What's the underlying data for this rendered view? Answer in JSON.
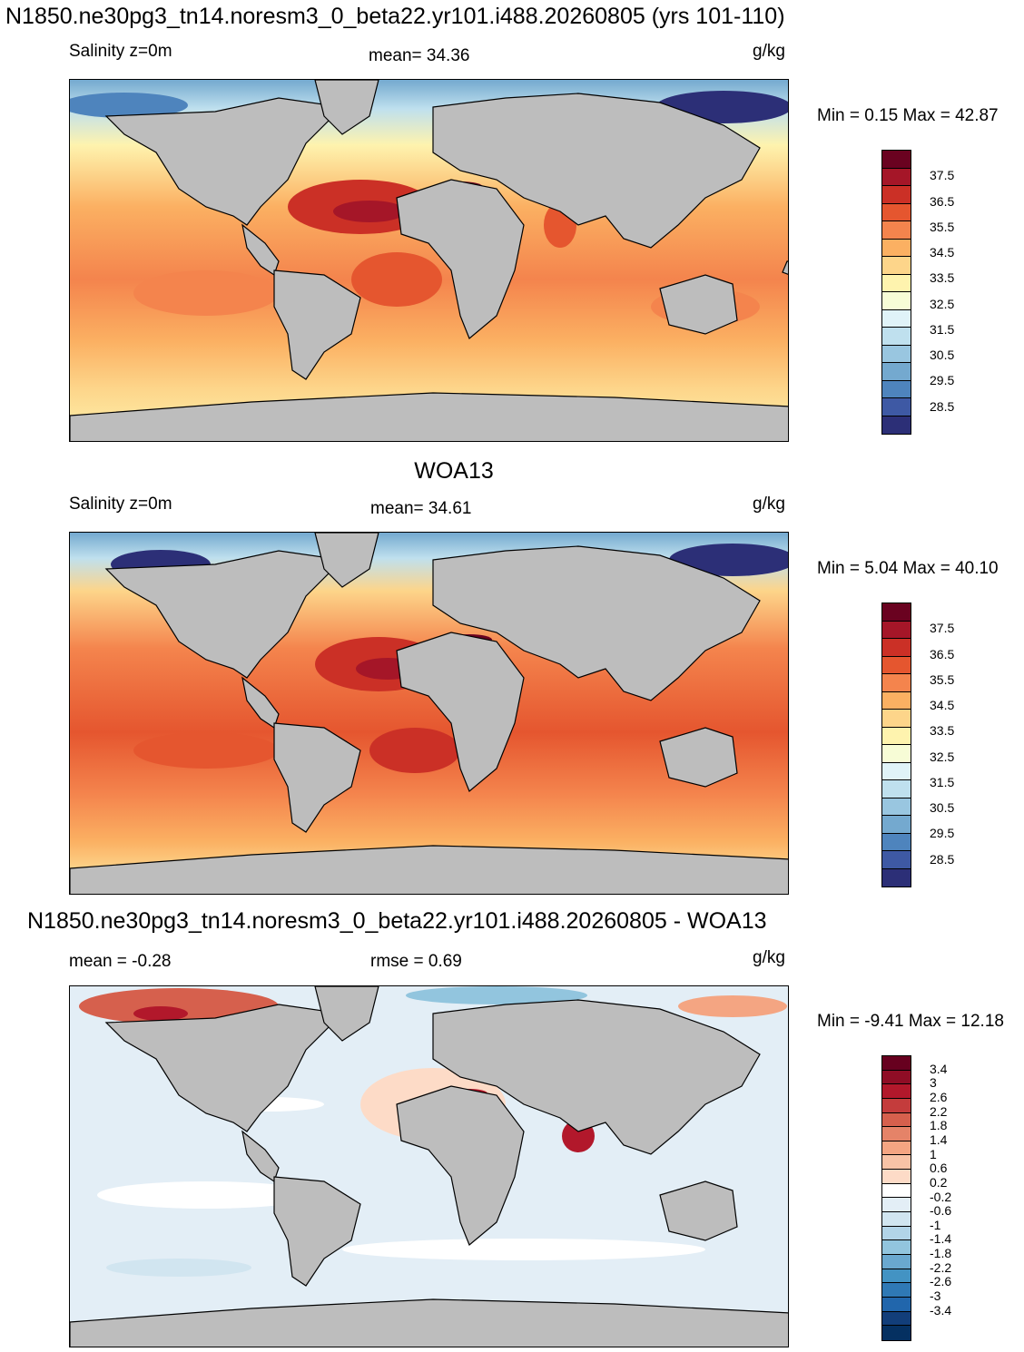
{
  "titles": {
    "model": "N1850.ne30pg3_tn14.noresm3_0_beta22.yr101.i488.20260805 (yrs 101-110)",
    "obs": "WOA13",
    "diff": "N1850.ne30pg3_tn14.noresm3_0_beta22.yr101.i488.20260805 - WOA13"
  },
  "panels": [
    {
      "left_label": "Salinity z=0m",
      "center_label": "mean=  34.36",
      "units": "g/kg",
      "minmax": "Min =   0.15 Max =  42.87",
      "colorbar": {
        "labels": [
          "37.5",
          "36.5",
          "35.5",
          "34.5",
          "33.5",
          "32.5",
          "31.5",
          "30.5",
          "29.5",
          "28.5"
        ],
        "colors": [
          "#6a0220",
          "#a51628",
          "#cb3026",
          "#e5562f",
          "#f4844d",
          "#fbb062",
          "#fdd58a",
          "#fef3ae",
          "#f7fcd6",
          "#e0f3f8",
          "#bfe0ee",
          "#99c6e0",
          "#74a9cf",
          "#4e84bd",
          "#3e59a4",
          "#2c2f77"
        ]
      }
    },
    {
      "left_label": "Salinity z=0m",
      "center_label": "mean=  34.61",
      "units": "g/kg",
      "minmax": "Min =   5.04 Max =  40.10",
      "colorbar": {
        "labels": [
          "37.5",
          "36.5",
          "35.5",
          "34.5",
          "33.5",
          "32.5",
          "31.5",
          "30.5",
          "29.5",
          "28.5"
        ],
        "colors": [
          "#6a0220",
          "#a51628",
          "#cb3026",
          "#e5562f",
          "#f4844d",
          "#fbb062",
          "#fdd58a",
          "#fef3ae",
          "#f7fcd6",
          "#e0f3f8",
          "#bfe0ee",
          "#99c6e0",
          "#74a9cf",
          "#4e84bd",
          "#3e59a4",
          "#2c2f77"
        ]
      }
    },
    {
      "left_label": "mean =  -0.28",
      "center_label": "rmse =   0.69",
      "units": "g/kg",
      "minmax": "Min =  -9.41 Max =  12.18",
      "colorbar": {
        "labels": [
          "3.4",
          "3",
          "2.6",
          "2.2",
          "1.8",
          "1.4",
          "1",
          "0.6",
          "0.2",
          "-0.2",
          "-0.6",
          "-1",
          "-1.4",
          "-1.8",
          "-2.2",
          "-2.6",
          "-3",
          "-3.4"
        ],
        "colors": [
          "#67001f",
          "#8f0d25",
          "#b2182b",
          "#c43c3c",
          "#d6604d",
          "#e58368",
          "#f4a582",
          "#f8c3a6",
          "#fddbc7",
          "#ffffff",
          "#e3eef6",
          "#d1e5f0",
          "#b2d4e8",
          "#92c5de",
          "#6aa8cf",
          "#4393c3",
          "#2f79b5",
          "#2166ac",
          "#123e7a",
          "#053061"
        ]
      }
    }
  ]
}
